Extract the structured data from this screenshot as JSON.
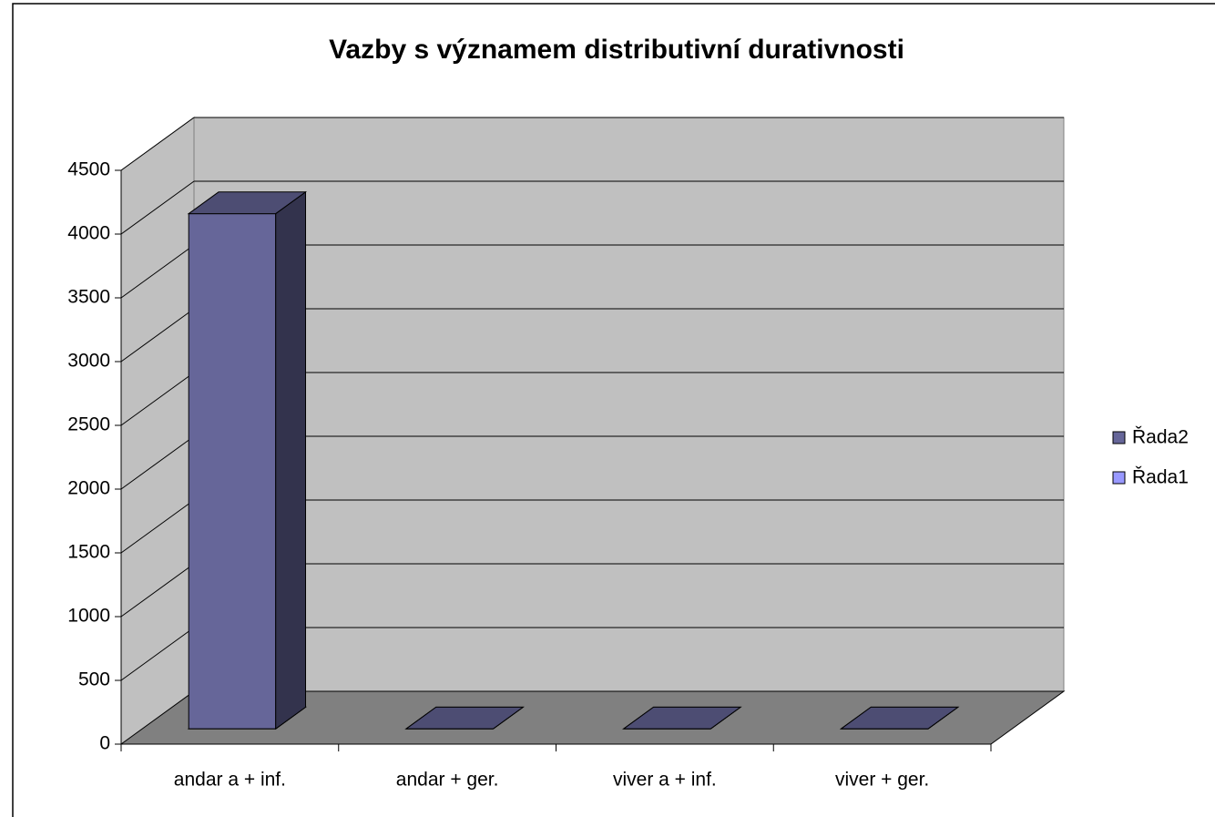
{
  "chart_data": {
    "type": "bar3d",
    "title": "Vazby s významem distributivní durativnosti",
    "categories": [
      "andar a + inf.",
      "andar + ger.",
      "viver a + inf.",
      "viver + ger."
    ],
    "series": [
      {
        "name": "Řada2",
        "color": "#666699",
        "values": [
          4040,
          0,
          0,
          0
        ]
      },
      {
        "name": "Řada1",
        "color": "#9999ff",
        "values": [
          0,
          0,
          0,
          0
        ]
      }
    ],
    "ylim": [
      0,
      4500
    ],
    "yticks": [
      0,
      500,
      1000,
      1500,
      2000,
      2500,
      3000,
      3500,
      4000,
      4500
    ],
    "grid": true,
    "legend": "right"
  }
}
